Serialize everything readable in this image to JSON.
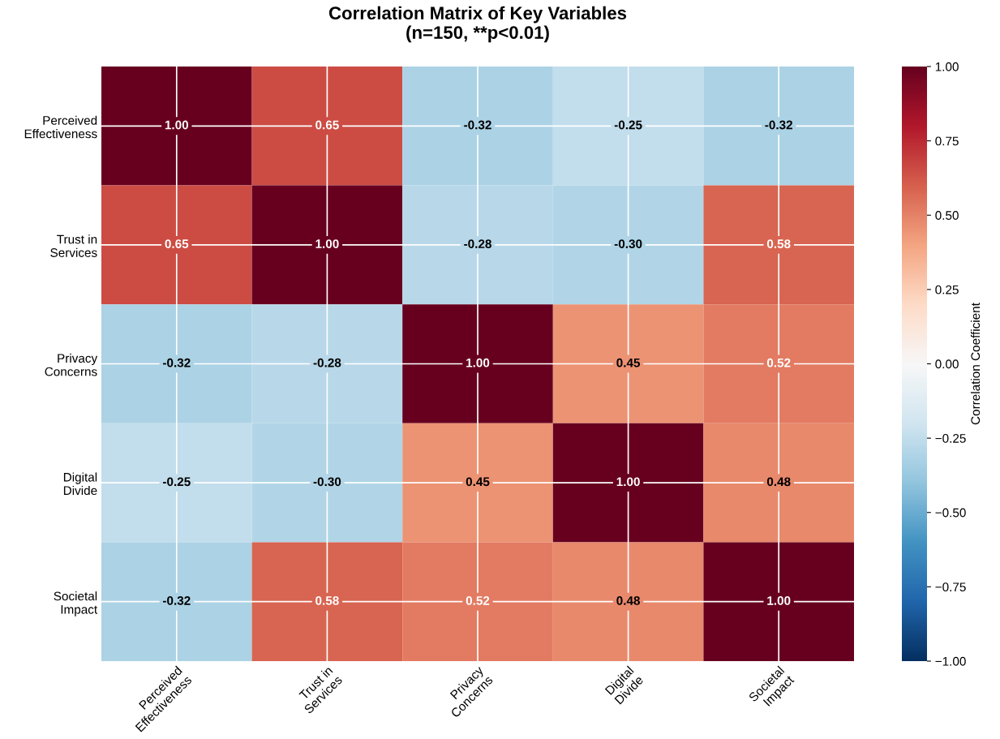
{
  "chart_data": {
    "type": "heatmap",
    "title": "Correlation Matrix of Key Variables\n(n=150, **p<0.01)",
    "categories": [
      "Perceived\nEffectiveness",
      "Trust in\nServices",
      "Privacy\nConcerns",
      "Digital\nDivide",
      "Societal\nImpact"
    ],
    "y_categories": [
      "Perceived\nEffectiveness",
      "Trust in\nServices",
      "Privacy\nConcerns",
      "Digital\nDivide",
      "Societal\nImpact"
    ],
    "cells": [
      [
        1.0,
        0.65,
        -0.32,
        -0.25,
        -0.32
      ],
      [
        0.65,
        1.0,
        -0.28,
        -0.3,
        0.58
      ],
      [
        -0.32,
        -0.28,
        1.0,
        0.45,
        0.52
      ],
      [
        -0.25,
        -0.3,
        0.45,
        1.0,
        0.48
      ],
      [
        -0.32,
        0.58,
        0.52,
        0.48,
        1.0
      ]
    ],
    "cell_labels": [
      [
        "1.00",
        "0.65",
        "-0.32",
        "-0.25",
        "-0.32"
      ],
      [
        "0.65",
        "1.00",
        "-0.28",
        "-0.30",
        "0.58"
      ],
      [
        "-0.32",
        "-0.28",
        "1.00",
        "0.45",
        "0.52"
      ],
      [
        "-0.25",
        "-0.30",
        "0.45",
        "1.00",
        "0.48"
      ],
      [
        "-0.32",
        "0.58",
        "0.52",
        "0.48",
        "1.00"
      ]
    ],
    "clim": [
      -1,
      1
    ],
    "cticks": [
      {
        "value": -1,
        "label": "−1.00"
      },
      {
        "value": -0.75,
        "label": "−0.75"
      },
      {
        "value": -0.5,
        "label": "−0.50"
      },
      {
        "value": -0.25,
        "label": "−0.25"
      },
      {
        "value": 0,
        "label": "0.00"
      },
      {
        "value": 0.25,
        "label": "0.25"
      },
      {
        "value": 0.5,
        "label": "0.50"
      },
      {
        "value": 0.75,
        "label": "0.75"
      },
      {
        "value": 1,
        "label": "1.00"
      }
    ],
    "clabel": "Correlation Coefficient",
    "grid": true
  }
}
